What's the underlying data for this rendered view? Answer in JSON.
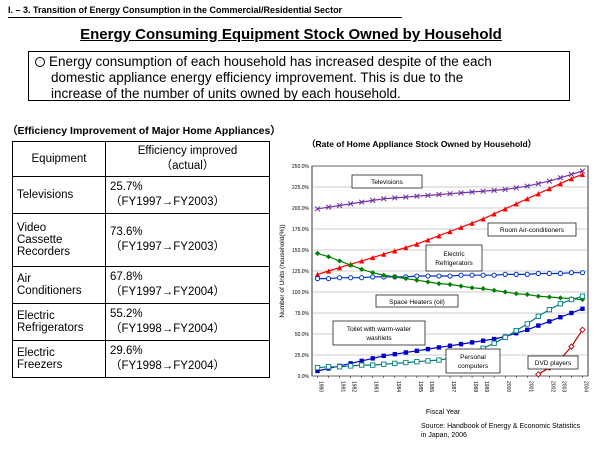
{
  "header": {
    "section_label": "I. – 3. Transition of Energy Consumption in the Commercial/Residential Sector",
    "title": "Energy Consuming Equipment Stock Owned by Household"
  },
  "summary": {
    "line1": "Energy consumption of each household has increased despite of the each",
    "line2": "domestic appliance energy efficiency improvement. This is due to the",
    "line3": "increase of the number of units owned by each household."
  },
  "table": {
    "title": "（Efficiency Improvement of Major Home Appliances）",
    "headers": [
      "Equipment",
      "Efficiency improved",
      "（actual）"
    ],
    "rows": [
      {
        "equipment": [
          "Televisions"
        ],
        "percent": "25.7%",
        "period": "（FY1997→FY2003）"
      },
      {
        "equipment": [
          "Video",
          "Cassette",
          "Recorders"
        ],
        "percent": "73.6%",
        "period": "（FY1997→FY2003）"
      },
      {
        "equipment": [
          "Air",
          "Conditioners"
        ],
        "percent": "67.8%",
        "period": "（FY1997→FY2004）"
      },
      {
        "equipment": [
          "Electric",
          "Refrigerators"
        ],
        "percent": "55.2%",
        "period": "（FY1998→FY2004）"
      },
      {
        "equipment": [
          "Electric",
          "Freezers"
        ],
        "percent": "29.6%",
        "period": "（FY1998→FY2004）"
      }
    ]
  },
  "chart_data": {
    "type": "line",
    "title": "（Rate of Home Appliance Stock Owned by Household）",
    "xlabel": "Fiscal Year",
    "ylabel": "Number of Units (household(%))",
    "ylim": [
      0,
      250
    ],
    "yticks": [
      0,
      25,
      50,
      75,
      100,
      125,
      150,
      175,
      200,
      225,
      250
    ],
    "ytick_labels": [
      "0.0%",
      "25.0%",
      "50.0%",
      "75.0%",
      "100.0%",
      "125.0%",
      "150.0%",
      "175.0%",
      "200.0%",
      "225.0%",
      "250.0%"
    ],
    "x": [
      "1980",
      "1981",
      "1982",
      "1983",
      "1984",
      "1985",
      "1986",
      "1987",
      "1988",
      "1989",
      "1990",
      "1991",
      "1992",
      "1993",
      "1994",
      "1995",
      "1996",
      "1997",
      "1998",
      "1999",
      "2000",
      "2001",
      "2002",
      "2003",
      "2004"
    ],
    "x_tick_labels": [
      "1980",
      "1981",
      "1982",
      "1983",
      "1984",
      "1985",
      "1986",
      "1987",
      "1988",
      "1989",
      "2000",
      "2001",
      "2002",
      "2003",
      "2004"
    ],
    "grid": true,
    "series": [
      {
        "name": "Televisions",
        "color": "#7030a0",
        "marker": "cross",
        "values": [
          199,
          201,
          203,
          205,
          207,
          209,
          211,
          212,
          213,
          214,
          215,
          216,
          217,
          218,
          219,
          220,
          221,
          222,
          224,
          226,
          229,
          232,
          236,
          240,
          244
        ]
      },
      {
        "name": "Room Air-conditioners",
        "color": "#ff0000",
        "marker": "triangle",
        "values": [
          121,
          125,
          129,
          133,
          137,
          141,
          145,
          149,
          153,
          157,
          162,
          167,
          172,
          177,
          182,
          187,
          193,
          199,
          205,
          211,
          217,
          223,
          229,
          235,
          240
        ]
      },
      {
        "name": "Electric Refrigerators",
        "color": "#0033cc",
        "marker": "circle",
        "values": [
          116,
          116,
          117,
          117,
          117,
          118,
          118,
          118,
          118,
          119,
          119,
          119,
          119,
          120,
          120,
          120,
          120,
          121,
          121,
          121,
          122,
          122,
          122,
          123,
          123
        ]
      },
      {
        "name": "Space Heaters (oil)",
        "color": "#008000",
        "marker": "diamond",
        "values": [
          146,
          142,
          137,
          132,
          127,
          123,
          120,
          118,
          116,
          114,
          112,
          110,
          109,
          107,
          105,
          104,
          102,
          100,
          98,
          97,
          95,
          94,
          93,
          92,
          91
        ]
      },
      {
        "name": "Toilet with warm-water washlets",
        "color": "#0000cc",
        "marker": "square",
        "values": [
          6,
          9,
          12,
          15,
          18,
          21,
          24,
          26,
          28,
          30,
          32,
          34,
          36,
          38,
          40,
          42,
          44,
          47,
          51,
          55,
          60,
          65,
          70,
          75,
          80
        ]
      },
      {
        "name": "Personal computers",
        "color": "#008080",
        "marker": "square-open",
        "values": [
          10,
          11,
          11,
          12,
          13,
          13,
          14,
          15,
          16,
          17,
          18,
          19,
          21,
          24,
          28,
          33,
          39,
          46,
          54,
          62,
          71,
          79,
          86,
          91,
          95
        ]
      },
      {
        "name": "DVD players",
        "color": "#c00000",
        "marker": "diamond-open",
        "values": [
          null,
          null,
          null,
          null,
          null,
          null,
          null,
          null,
          null,
          null,
          null,
          null,
          null,
          null,
          null,
          null,
          null,
          null,
          null,
          null,
          2,
          10,
          20,
          35,
          55
        ]
      }
    ],
    "source_line1": "Source: Handbook of Energy & Economic Statistics",
    "source_line2": "in Japan, 2006"
  }
}
